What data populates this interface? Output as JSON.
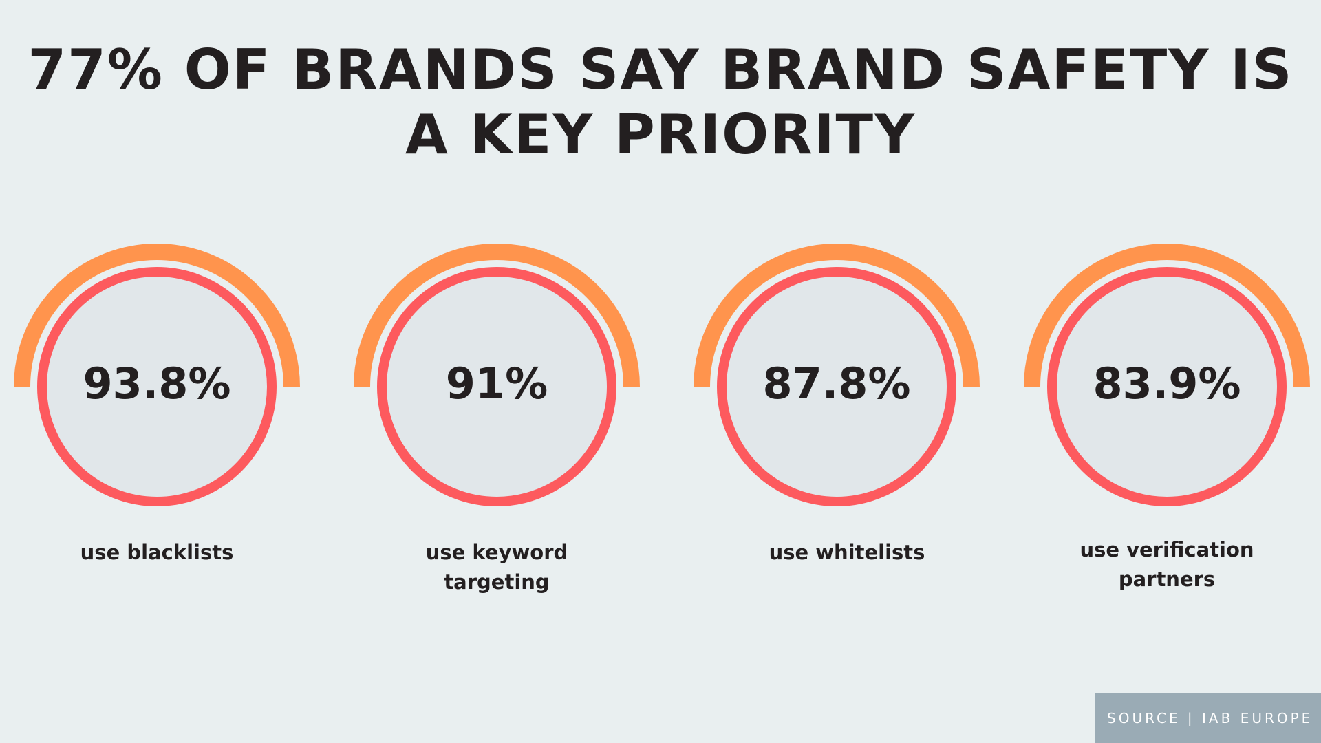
{
  "title": "77% OF BRANDS SAY BRAND SAFETY IS A KEY PRIORITY",
  "colors": {
    "background": "#e9eff0",
    "outer_arc": "#ff944d",
    "inner_ring": "#fd5a5e",
    "circle_fill": "#e1e7ea",
    "text": "#231f20",
    "source_box": "#9aabb5"
  },
  "chart_data": {
    "type": "table",
    "title": "77% OF BRANDS SAY BRAND SAFETY IS A KEY PRIORITY",
    "items": [
      {
        "value": "93.8%",
        "label": "use blacklists"
      },
      {
        "value": "91%",
        "label": "use keyword targeting"
      },
      {
        "value": "87.8%",
        "label": "use whitelists"
      },
      {
        "value": "83.9%",
        "label": "use verification partners"
      }
    ]
  },
  "source": "SOURCE | IAB EUROPE"
}
